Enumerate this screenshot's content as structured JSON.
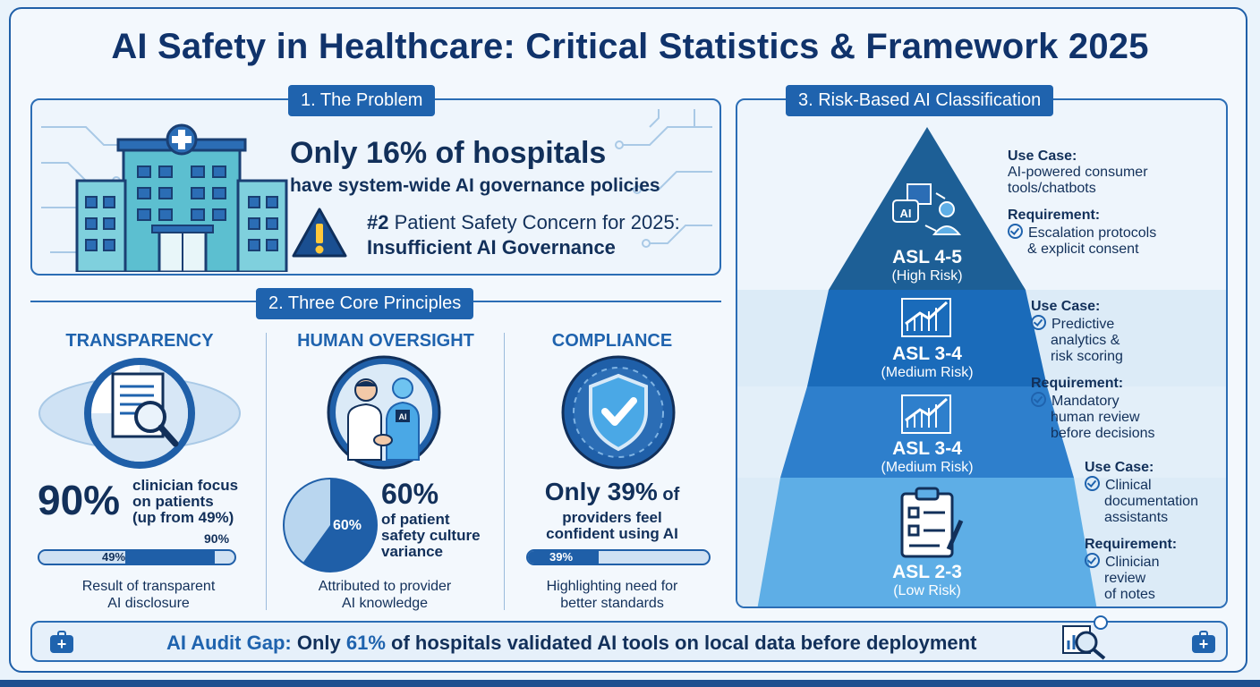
{
  "title": "AI Safety in Healthcare: Critical Statistics & Framework 2025",
  "problem": {
    "label": "1. The Problem",
    "headline_prefix": "Only ",
    "headline_pct": "16%",
    "headline_suffix": " of hospitals",
    "subline": "have system-wide AI governance policies",
    "concern_rank": "#2",
    "concern_text": " Patient Safety Concern for 2025:",
    "concern_bold": "Insufficient AI Governance"
  },
  "principles": {
    "label": "2. Three Core Principles",
    "transparency": {
      "heading": "TRANSPARENCY",
      "stat": "90%",
      "desc_1": "clinician focus",
      "desc_2": "on patients",
      "desc_3": "(up from 49%)",
      "bar_top_label": "90%",
      "bar_label": "49%",
      "bar_value": 90,
      "note_1": "Result of transparent",
      "note_2": "AI disclosure"
    },
    "oversight": {
      "heading": "HUMAN OVERSIGHT",
      "ai_badge": "AI",
      "pie_label": "60%",
      "pie_value": 60,
      "stat": "60%",
      "desc_1": "of patient",
      "desc_2": "safety culture",
      "desc_3": "variance",
      "note_1": "Attributed to provider",
      "note_2": "AI knowledge"
    },
    "compliance": {
      "heading": "COMPLIANCE",
      "stat_prefix": "Only ",
      "stat": "39%",
      "stat_suffix": " of",
      "desc_1": "providers feel",
      "desc_2": "confident using AI",
      "bar_label": "39%",
      "bar_value": 39,
      "note_1": "Highlighting need for",
      "note_2": "better standards"
    }
  },
  "classification": {
    "label": "3. Risk-Based AI Classification",
    "tiers": [
      {
        "level": "ASL 4-5",
        "risk": "(High Risk)",
        "icon_text": "AI"
      },
      {
        "level": "ASL 3-4",
        "risk": "(Medium Risk)"
      },
      {
        "level": "ASL 3-4",
        "risk": "(Medium Risk)"
      },
      {
        "level": "ASL 2-3",
        "risk": "(Low Risk)"
      }
    ],
    "side1": {
      "use_case": "Use Case:",
      "uc_1": "AI-powered consumer",
      "uc_2": "tools/chatbots",
      "req": "Requirement:",
      "req_1": "Escalation protocols",
      "req_2": "& explicit consent"
    },
    "side2": {
      "use_case": "Use Case:",
      "uc_1": "Predictive",
      "uc_2": "analytics &",
      "uc_3": "risk scoring",
      "req": "Requirement:",
      "req_1": "Mandatory",
      "req_2": "human review",
      "req_3": "before decisions"
    },
    "side3": {
      "use_case": "Use Case:",
      "uc_1": "Clinical",
      "uc_2": "documentation",
      "uc_3": "assistants",
      "req": "Requirement:",
      "req_1": "Clinician",
      "req_2": "review",
      "req_3": "of notes"
    }
  },
  "footer": {
    "lead": "AI Audit Gap:",
    "text_1": " Only ",
    "pct": "61%",
    "text_2": " of hospitals validated AI tools on local data before deployment"
  },
  "colors": {
    "primary": "#1f63ae",
    "dark": "#10336b",
    "light": "#cfe1f3",
    "teal": "#49b3c4"
  }
}
